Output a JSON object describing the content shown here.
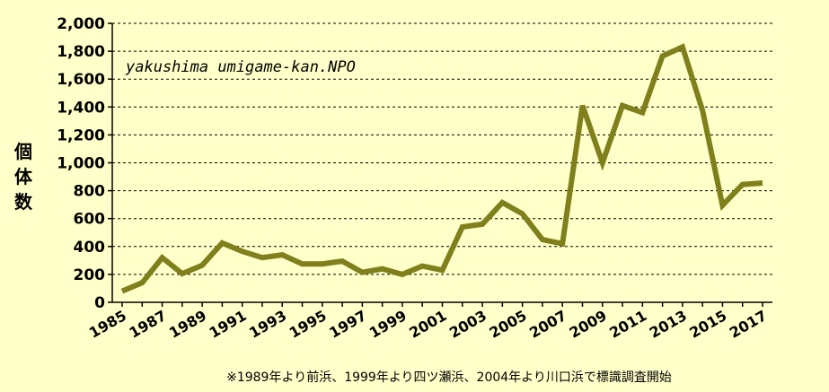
{
  "chart_data": {
    "type": "line",
    "annotation": "yakushima umigame-kan.NPO",
    "ylabel": "個体数",
    "footnote": "※1989年より前浜、1999年より四ツ瀬浜、2004年より川口浜で標識調査開始",
    "ylim": [
      0,
      2000
    ],
    "yticks": [
      0,
      200,
      400,
      600,
      800,
      1000,
      1200,
      1400,
      1600,
      1800,
      2000
    ],
    "ytick_labels": [
      "0",
      "200",
      "400",
      "600",
      "800",
      "1,000",
      "1,200",
      "1,400",
      "1,600",
      "1,800",
      "2,000"
    ],
    "xlim": [
      1985,
      2017
    ],
    "xtick_labels": [
      "1985",
      "1987",
      "1989",
      "1991",
      "1993",
      "1995",
      "1997",
      "1999",
      "2001",
      "2003",
      "2005",
      "2007",
      "2009",
      "2011",
      "2013",
      "2015",
      "2017"
    ],
    "grid": "horizontal-dashed",
    "line_color": "#7f7f1c",
    "series": [
      {
        "x": [
          1985,
          1986,
          1987,
          1988,
          1989,
          1990,
          1991,
          1992,
          1993,
          1994,
          1995,
          1996,
          1997,
          1998,
          1999,
          2000,
          2001,
          2002,
          2003,
          2004,
          2005,
          2006,
          2007,
          2008,
          2009,
          2010,
          2011,
          2012,
          2013,
          2014,
          2015,
          2016,
          2017
        ],
        "values": [
          80,
          140,
          320,
          205,
          265,
          425,
          365,
          320,
          340,
          275,
          275,
          295,
          215,
          240,
          200,
          260,
          230,
          540,
          560,
          715,
          635,
          450,
          420,
          1410,
          1000,
          1410,
          1360,
          1765,
          1830,
          1375,
          695,
          845,
          855
        ]
      }
    ]
  }
}
